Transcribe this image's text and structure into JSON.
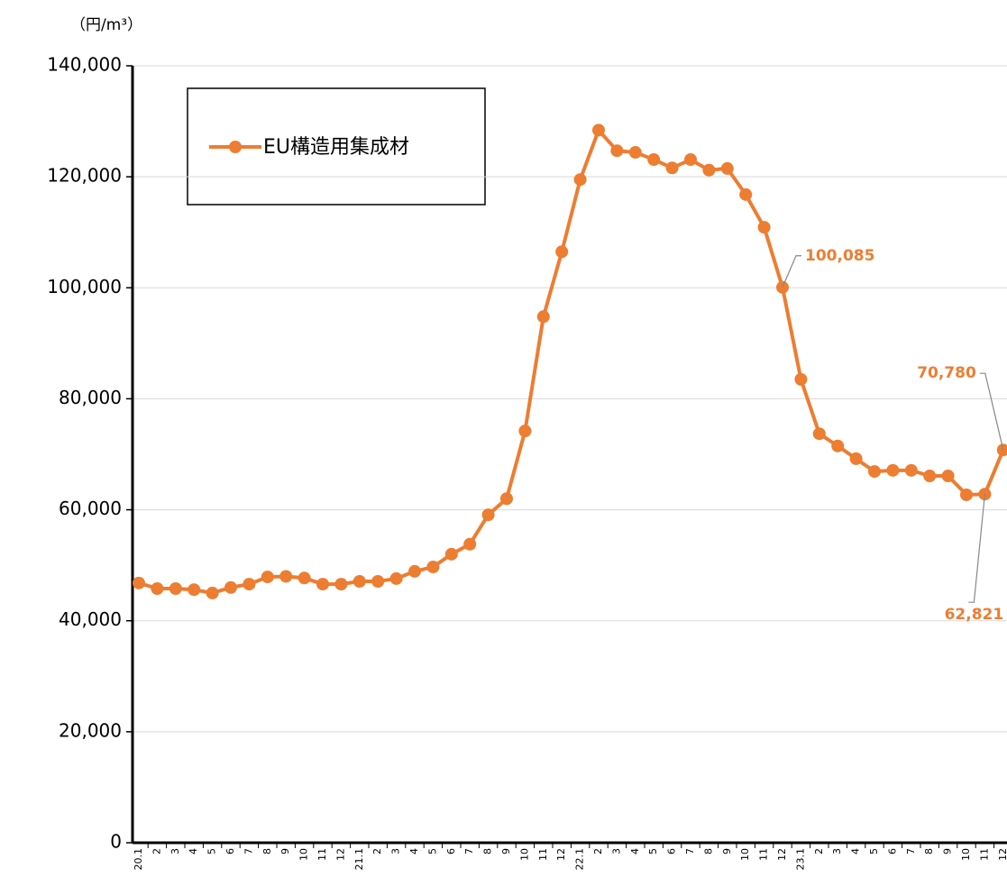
{
  "chart_data": {
    "type": "line",
    "y_unit": "（円/m³）",
    "categories": [
      "20.1",
      "2",
      "3",
      "4",
      "5",
      "6",
      "7",
      "8",
      "9",
      "10",
      "11",
      "12",
      "21.1",
      "2",
      "3",
      "4",
      "5",
      "6",
      "7",
      "8",
      "9",
      "10",
      "11",
      "12",
      "22.1",
      "2",
      "3",
      "4",
      "5",
      "6",
      "7",
      "8",
      "9",
      "10",
      "11",
      "12",
      "23.1",
      "2",
      "3",
      "4",
      "5",
      "6",
      "7",
      "8",
      "9",
      "10",
      "11",
      "12"
    ],
    "series": [
      {
        "name": "EU構造用集成材",
        "color": "#ed7d31",
        "values": [
          46800,
          45800,
          45800,
          45600,
          45000,
          46000,
          46600,
          47900,
          48000,
          47700,
          46600,
          46600,
          47100,
          47100,
          47600,
          48900,
          49700,
          52000,
          53800,
          59100,
          62000,
          74200,
          94800,
          106500,
          119500,
          128400,
          124700,
          124400,
          123100,
          121600,
          123100,
          121200,
          121500,
          116800,
          110900,
          100085,
          83500,
          73700,
          71500,
          69200,
          66900,
          67100,
          67100,
          66100,
          66100,
          62700,
          62821,
          70780
        ],
        "value_labels": [
          null,
          null,
          null,
          null,
          null,
          null,
          null,
          null,
          null,
          null,
          null,
          null,
          null,
          null,
          null,
          null,
          null,
          null,
          null,
          null,
          null,
          null,
          null,
          null,
          null,
          null,
          null,
          null,
          null,
          null,
          null,
          null,
          null,
          null,
          null,
          "100,085",
          null,
          null,
          null,
          null,
          null,
          null,
          null,
          null,
          null,
          null,
          "62,821",
          "70,780"
        ]
      }
    ],
    "ylim": [
      0,
      140000
    ],
    "yticks": [
      {
        "value": 0,
        "label": "0"
      },
      {
        "value": 20000,
        "label": "20,000"
      },
      {
        "value": 40000,
        "label": "40,000"
      },
      {
        "value": 60000,
        "label": "60,000"
      },
      {
        "value": 80000,
        "label": "80,000"
      },
      {
        "value": 100000,
        "label": "100,000"
      },
      {
        "value": 120000,
        "label": "120,000"
      },
      {
        "value": 140000,
        "label": "140,000"
      }
    ],
    "grid": true
  }
}
